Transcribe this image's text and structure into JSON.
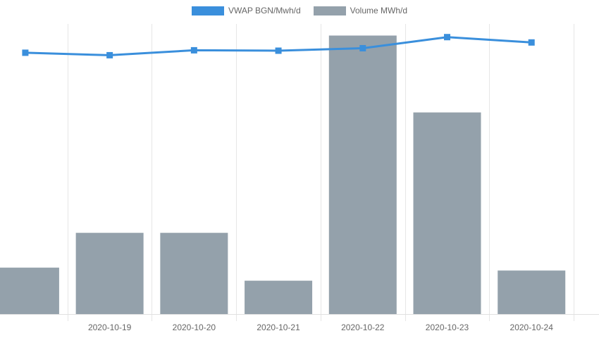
{
  "chart_data": {
    "type": "bar",
    "categories": [
      "",
      "2020-10-19",
      "2020-10-20",
      "2020-10-21",
      "2020-10-22",
      "2020-10-23",
      "2020-10-24"
    ],
    "series": [
      {
        "name": "VWAP BGN/Mwh/d",
        "type": "line",
        "color": "#3a8fdc",
        "marker": "square",
        "values": [
          63.5,
          62.9,
          64.1,
          64.0,
          64.6,
          67.3,
          66.0
        ]
      },
      {
        "name": "Volume MWh/d",
        "type": "bar",
        "color": "#94a1ab",
        "values": [
          16,
          28,
          28,
          11.5,
          96,
          69.5,
          15
        ]
      }
    ],
    "x_window": [
      -0.3,
      6.8
    ],
    "grid": "vertical",
    "legend_position": "top-center"
  }
}
